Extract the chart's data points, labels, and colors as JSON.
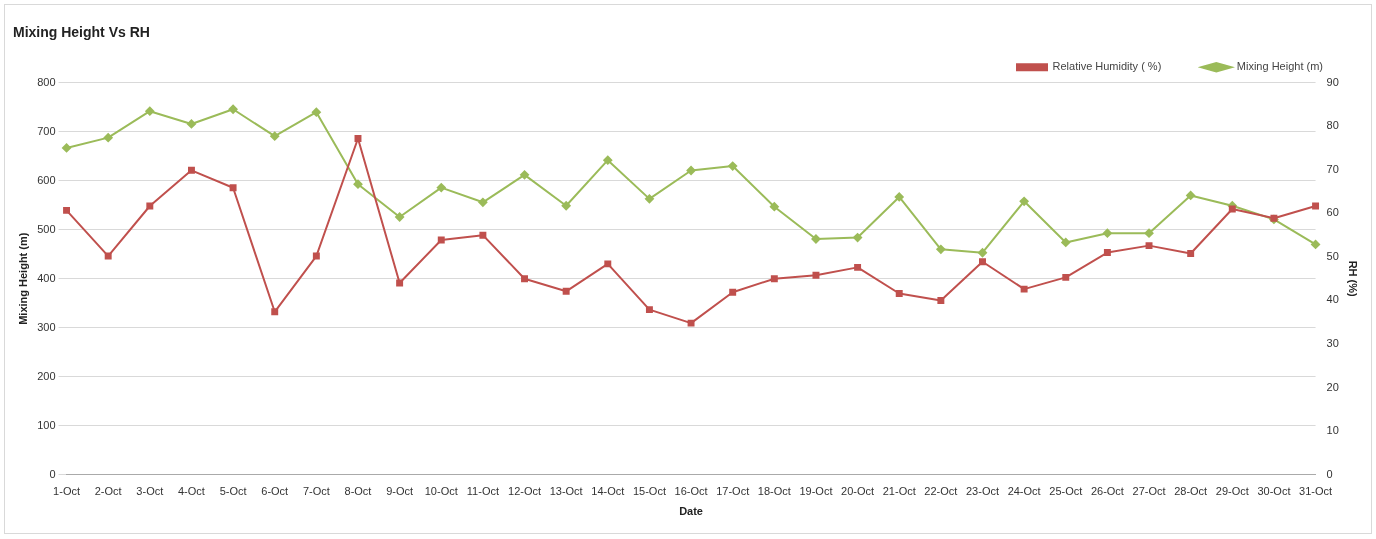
{
  "chart_data": {
    "type": "line",
    "title": "Mixing Height Vs RH",
    "xlabel": "Date",
    "ylabel": "Mixing Height (m)",
    "y2label": "RH (%)",
    "categories": [
      "1-Oct",
      "2-Oct",
      "3-Oct",
      "4-Oct",
      "5-Oct",
      "6-Oct",
      "7-Oct",
      "8-Oct",
      "9-Oct",
      "10-Oct",
      "11-Oct",
      "12-Oct",
      "13-Oct",
      "14-Oct",
      "15-Oct",
      "16-Oct",
      "17-Oct",
      "18-Oct",
      "19-Oct",
      "20-Oct",
      "21-Oct",
      "22-Oct",
      "23-Oct",
      "24-Oct",
      "25-Oct",
      "26-Oct",
      "27-Oct",
      "28-Oct",
      "29-Oct",
      "30-Oct",
      "31-Oct"
    ],
    "series": [
      {
        "name": "Mixing Height (m)",
        "color": "#9bbb59",
        "marker": "diamond",
        "values": [
          667,
          688,
          742,
          716,
          746,
          691,
          740,
          593,
          526,
          586,
          556,
          612,
          549,
          642,
          563,
          621,
          630,
          547,
          481,
          484,
          567,
          460,
          453,
          558,
          474,
          493,
          493,
          570,
          549,
          521,
          470
        ]
      },
      {
        "name": "Relative Humidity ( %)",
        "color": "#c0504d",
        "marker": "square",
        "axis": "y2",
        "values": [
          60.7,
          50.2,
          61.7,
          69.9,
          65.9,
          37.4,
          50.2,
          77.2,
          44,
          53.9,
          55,
          45,
          42.1,
          48.4,
          37.9,
          34.8,
          41.9,
          45,
          45.8,
          47.6,
          41.6,
          40,
          48.9,
          42.6,
          45.3,
          51,
          52.6,
          50.8,
          61,
          58.9,
          61.7
        ]
      }
    ],
    "ylim": [
      0,
      800
    ],
    "yticks": [
      0,
      100,
      200,
      300,
      400,
      500,
      600,
      700,
      800
    ],
    "y2lim": [
      0,
      90
    ],
    "y2ticks": [
      0,
      10,
      20,
      30,
      40,
      50,
      60,
      70,
      80,
      90
    ],
    "grid": "y",
    "legend": "top right",
    "line_style": "solid"
  }
}
